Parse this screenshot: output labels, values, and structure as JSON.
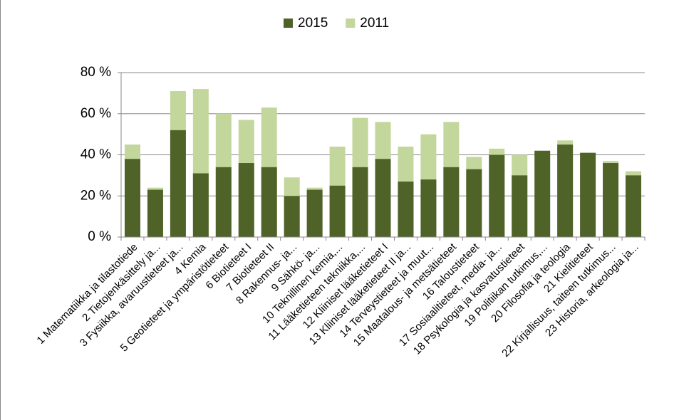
{
  "chart_data": {
    "type": "bar",
    "overlap": true,
    "categories": [
      "1 Matematiikka ja tilastotiede",
      "2 Tietojenkäsittely ja...",
      "3 Fysiikka, avaruustieteet ja...",
      "4 Kemia",
      "5 Geotieteet ja ympäristötieteet",
      "6 Biotieteet I",
      "7 Biotieteet II",
      "8 Rakennus- ja...",
      "9 Sähkö- ja...",
      "10 Teknillinen kemia,...",
      "11 Lääketieteen tekniikka,...",
      "12 Kliiniset lääketieteet I",
      "13 Kliiniset lääketieteet II ja...",
      "14 Terveystieteet ja muut...",
      "15 Maatalous- ja metsätieteet",
      "16 Taloustieteet",
      "17 Sosiaalitieteet, media- ja...",
      "18 Psykologia ja kasvatustieteet",
      "19 Politiikan tutkimus,...",
      "20 Filosofia ja teologia",
      "21 Kielitieteet",
      "22 Kirjallisuus, taiteen tutkimus...",
      "23 Historia, arkeologia ja..."
    ],
    "series": [
      {
        "name": "2011",
        "color": "#c3d69b",
        "values": [
          45,
          24,
          71,
          72,
          60,
          57,
          63,
          29,
          24,
          44,
          58,
          56,
          44,
          50,
          56,
          39,
          43,
          40,
          null,
          47,
          null,
          37,
          32
        ]
      },
      {
        "name": "2015",
        "color": "#4f6228",
        "values": [
          38,
          23,
          52,
          31,
          34,
          36,
          34,
          20,
          23,
          25,
          34,
          38,
          27,
          28,
          34,
          33,
          40,
          30,
          42,
          45,
          41,
          36,
          30
        ]
      }
    ],
    "legend_order": [
      "2015",
      "2011"
    ],
    "ylim": [
      0,
      80
    ],
    "yticks": [
      {
        "value": 0,
        "label": "0 %"
      },
      {
        "value": 20,
        "label": "20 %"
      },
      {
        "value": 40,
        "label": "40 %"
      },
      {
        "value": 60,
        "label": "60 %"
      },
      {
        "value": 80,
        "label": "80 %"
      }
    ],
    "grid": true,
    "legend": "top"
  }
}
